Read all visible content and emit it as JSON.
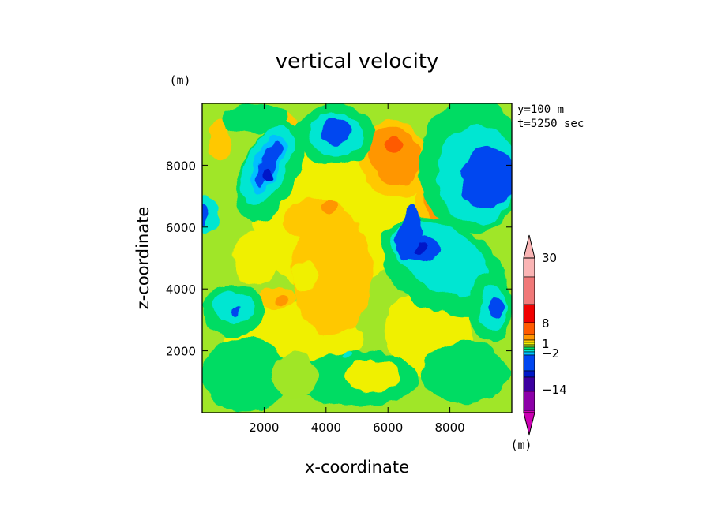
{
  "chart_data": {
    "type": "heatmap",
    "title": "vertical velocity",
    "xlabel": "x-coordinate",
    "ylabel": "z-coordinate",
    "y_unit": "(m)",
    "colorbar_unit": "(m)",
    "xlim": [
      0,
      10000
    ],
    "ylim": [
      0,
      10000
    ],
    "xticks": [
      "2000",
      "4000",
      "6000",
      "8000"
    ],
    "yticks": [
      "2000",
      "4000",
      "6000",
      "8000"
    ],
    "info": [
      "y=100 m",
      "t=5250 sec"
    ],
    "colorbar": {
      "colors": [
        "#cc00b4",
        "#8c00a8",
        "#3c00a0",
        "#0018c8",
        "#0046f0",
        "#00c0ff",
        "#00e6d2",
        "#00dc64",
        "#a0e628",
        "#f0f000",
        "#ffc800",
        "#ff9600",
        "#ff5a00",
        "#f00000",
        "#f07878",
        "#fab4b4"
      ],
      "labels": [
        "30",
        "8",
        "1",
        "−2",
        "−14"
      ]
    },
    "grid": false,
    "background_level": 8,
    "blobs": [
      {
        "x": 4100,
        "y": 6200,
        "rx": 2400,
        "ry": 2300,
        "rot": -8,
        "level": 9
      },
      {
        "x": 6200,
        "y": 7300,
        "rx": 1200,
        "ry": 900,
        "rot": -20,
        "level": 9
      },
      {
        "x": 2600,
        "y": 2200,
        "rx": 1900,
        "ry": 1400,
        "rot": 0,
        "level": 9
      },
      {
        "x": 7300,
        "y": 2600,
        "rx": 1400,
        "ry": 1400,
        "rot": 0,
        "level": 9
      },
      {
        "x": 4300,
        "y": 2400,
        "rx": 900,
        "ry": 700,
        "rot": 0,
        "level": 9
      },
      {
        "x": 4200,
        "y": 4500,
        "rx": 1300,
        "ry": 2000,
        "rot": 0,
        "level": 10
      },
      {
        "x": 3600,
        "y": 6300,
        "rx": 1000,
        "ry": 650,
        "rot": -15,
        "level": 10
      },
      {
        "x": 2400,
        "y": 3700,
        "rx": 600,
        "ry": 400,
        "rot": 0,
        "level": 10
      },
      {
        "x": 4100,
        "y": 6700,
        "rx": 300,
        "ry": 250,
        "rot": 0,
        "level": 11
      },
      {
        "x": 2600,
        "y": 3600,
        "rx": 200,
        "ry": 200,
        "rot": 0,
        "level": 11
      },
      {
        "x": 6200,
        "y": 8200,
        "rx": 1100,
        "ry": 1300,
        "rot": -25,
        "level": 10
      },
      {
        "x": 6200,
        "y": 8300,
        "rx": 800,
        "ry": 1000,
        "rot": -25,
        "level": 11
      },
      {
        "x": 6200,
        "y": 8700,
        "rx": 260,
        "ry": 250,
        "rot": 0,
        "level": 12
      },
      {
        "x": 7650,
        "y": 6950,
        "rx": 700,
        "ry": 1050,
        "rot": 0,
        "level": 10
      },
      {
        "x": 7650,
        "y": 6900,
        "rx": 450,
        "ry": 800,
        "rot": 0,
        "level": 11
      },
      {
        "x": 2700,
        "y": 9100,
        "rx": 450,
        "ry": 550,
        "rot": 0,
        "level": 10
      },
      {
        "x": 600,
        "y": 8800,
        "rx": 350,
        "ry": 700,
        "rot": 0,
        "level": 10
      },
      {
        "x": 1700,
        "y": 9500,
        "rx": 1000,
        "ry": 500,
        "rot": 0,
        "level": 7
      },
      {
        "x": 2200,
        "y": 7800,
        "rx": 900,
        "ry": 1700,
        "rot": 25,
        "level": 7
      },
      {
        "x": 2100,
        "y": 8000,
        "rx": 650,
        "ry": 1400,
        "rot": 25,
        "level": 6
      },
      {
        "x": 2100,
        "y": 8000,
        "rx": 400,
        "ry": 1050,
        "rot": 25,
        "level": 5
      },
      {
        "x": 2100,
        "y": 8000,
        "rx": 250,
        "ry": 850,
        "rot": 25,
        "level": 4
      },
      {
        "x": 2100,
        "y": 7700,
        "rx": 150,
        "ry": 250,
        "rot": 0,
        "level": 3
      },
      {
        "x": 4300,
        "y": 9000,
        "rx": 1300,
        "ry": 1000,
        "rot": 0,
        "level": 7
      },
      {
        "x": 4300,
        "y": 9000,
        "rx": 900,
        "ry": 700,
        "rot": 0,
        "level": 6
      },
      {
        "x": 4300,
        "y": 9100,
        "rx": 450,
        "ry": 450,
        "rot": 0,
        "level": 4
      },
      {
        "x": 8700,
        "y": 8000,
        "rx": 1700,
        "ry": 2200,
        "rot": 0,
        "level": 7
      },
      {
        "x": 8900,
        "y": 7700,
        "rx": 1300,
        "ry": 1600,
        "rot": 0,
        "level": 6
      },
      {
        "x": 9250,
        "y": 7600,
        "rx": 900,
        "ry": 1000,
        "rot": 0,
        "level": 4
      },
      {
        "x": 7800,
        "y": 4700,
        "rx": 2200,
        "ry": 1400,
        "rot": 30,
        "level": 7
      },
      {
        "x": 7700,
        "y": 5000,
        "rx": 1700,
        "ry": 1000,
        "rot": 30,
        "level": 6
      },
      {
        "x": 7000,
        "y": 5300,
        "rx": 700,
        "ry": 400,
        "rot": 0,
        "level": 4
      },
      {
        "x": 7000,
        "y": 5300,
        "rx": 300,
        "ry": 200,
        "rot": 0,
        "level": 3
      },
      {
        "x": 6700,
        "y": 5800,
        "rx": 350,
        "ry": 900,
        "rot": 10,
        "level": 4
      },
      {
        "x": 9300,
        "y": 3400,
        "rx": 700,
        "ry": 1100,
        "rot": 0,
        "level": 7
      },
      {
        "x": 9400,
        "y": 3400,
        "rx": 450,
        "ry": 700,
        "rot": 0,
        "level": 6
      },
      {
        "x": 9500,
        "y": 3400,
        "rx": 250,
        "ry": 350,
        "rot": 0,
        "level": 4
      },
      {
        "x": 1000,
        "y": 3300,
        "rx": 1000,
        "ry": 850,
        "rot": 0,
        "level": 7
      },
      {
        "x": 1000,
        "y": 3400,
        "rx": 650,
        "ry": 550,
        "rot": 0,
        "level": 6
      },
      {
        "x": 1100,
        "y": 3300,
        "rx": 150,
        "ry": 200,
        "rot": 0,
        "level": 4
      },
      {
        "x": 100,
        "y": 6400,
        "rx": 400,
        "ry": 600,
        "rot": 0,
        "level": 6
      },
      {
        "x": 0,
        "y": 6400,
        "rx": 200,
        "ry": 400,
        "rot": 0,
        "level": 4
      },
      {
        "x": 1400,
        "y": 1200,
        "rx": 1400,
        "ry": 1200,
        "rot": 0,
        "level": 7
      },
      {
        "x": 5000,
        "y": 1100,
        "rx": 2000,
        "ry": 900,
        "rot": 0,
        "level": 7
      },
      {
        "x": 8500,
        "y": 1300,
        "rx": 1400,
        "ry": 1000,
        "rot": 0,
        "level": 7
      },
      {
        "x": 3000,
        "y": 1200,
        "rx": 700,
        "ry": 800,
        "rot": 0,
        "level": 8
      },
      {
        "x": 5500,
        "y": 1200,
        "rx": 900,
        "ry": 500,
        "rot": 0,
        "level": 9
      },
      {
        "x": 3300,
        "y": 4400,
        "rx": 400,
        "ry": 500,
        "rot": 0,
        "level": 9
      },
      {
        "x": 1700,
        "y": 5000,
        "rx": 700,
        "ry": 900,
        "rot": 0,
        "level": 9
      },
      {
        "x": 4700,
        "y": 1900,
        "rx": 150,
        "ry": 100,
        "rot": 0,
        "level": 6
      }
    ]
  }
}
